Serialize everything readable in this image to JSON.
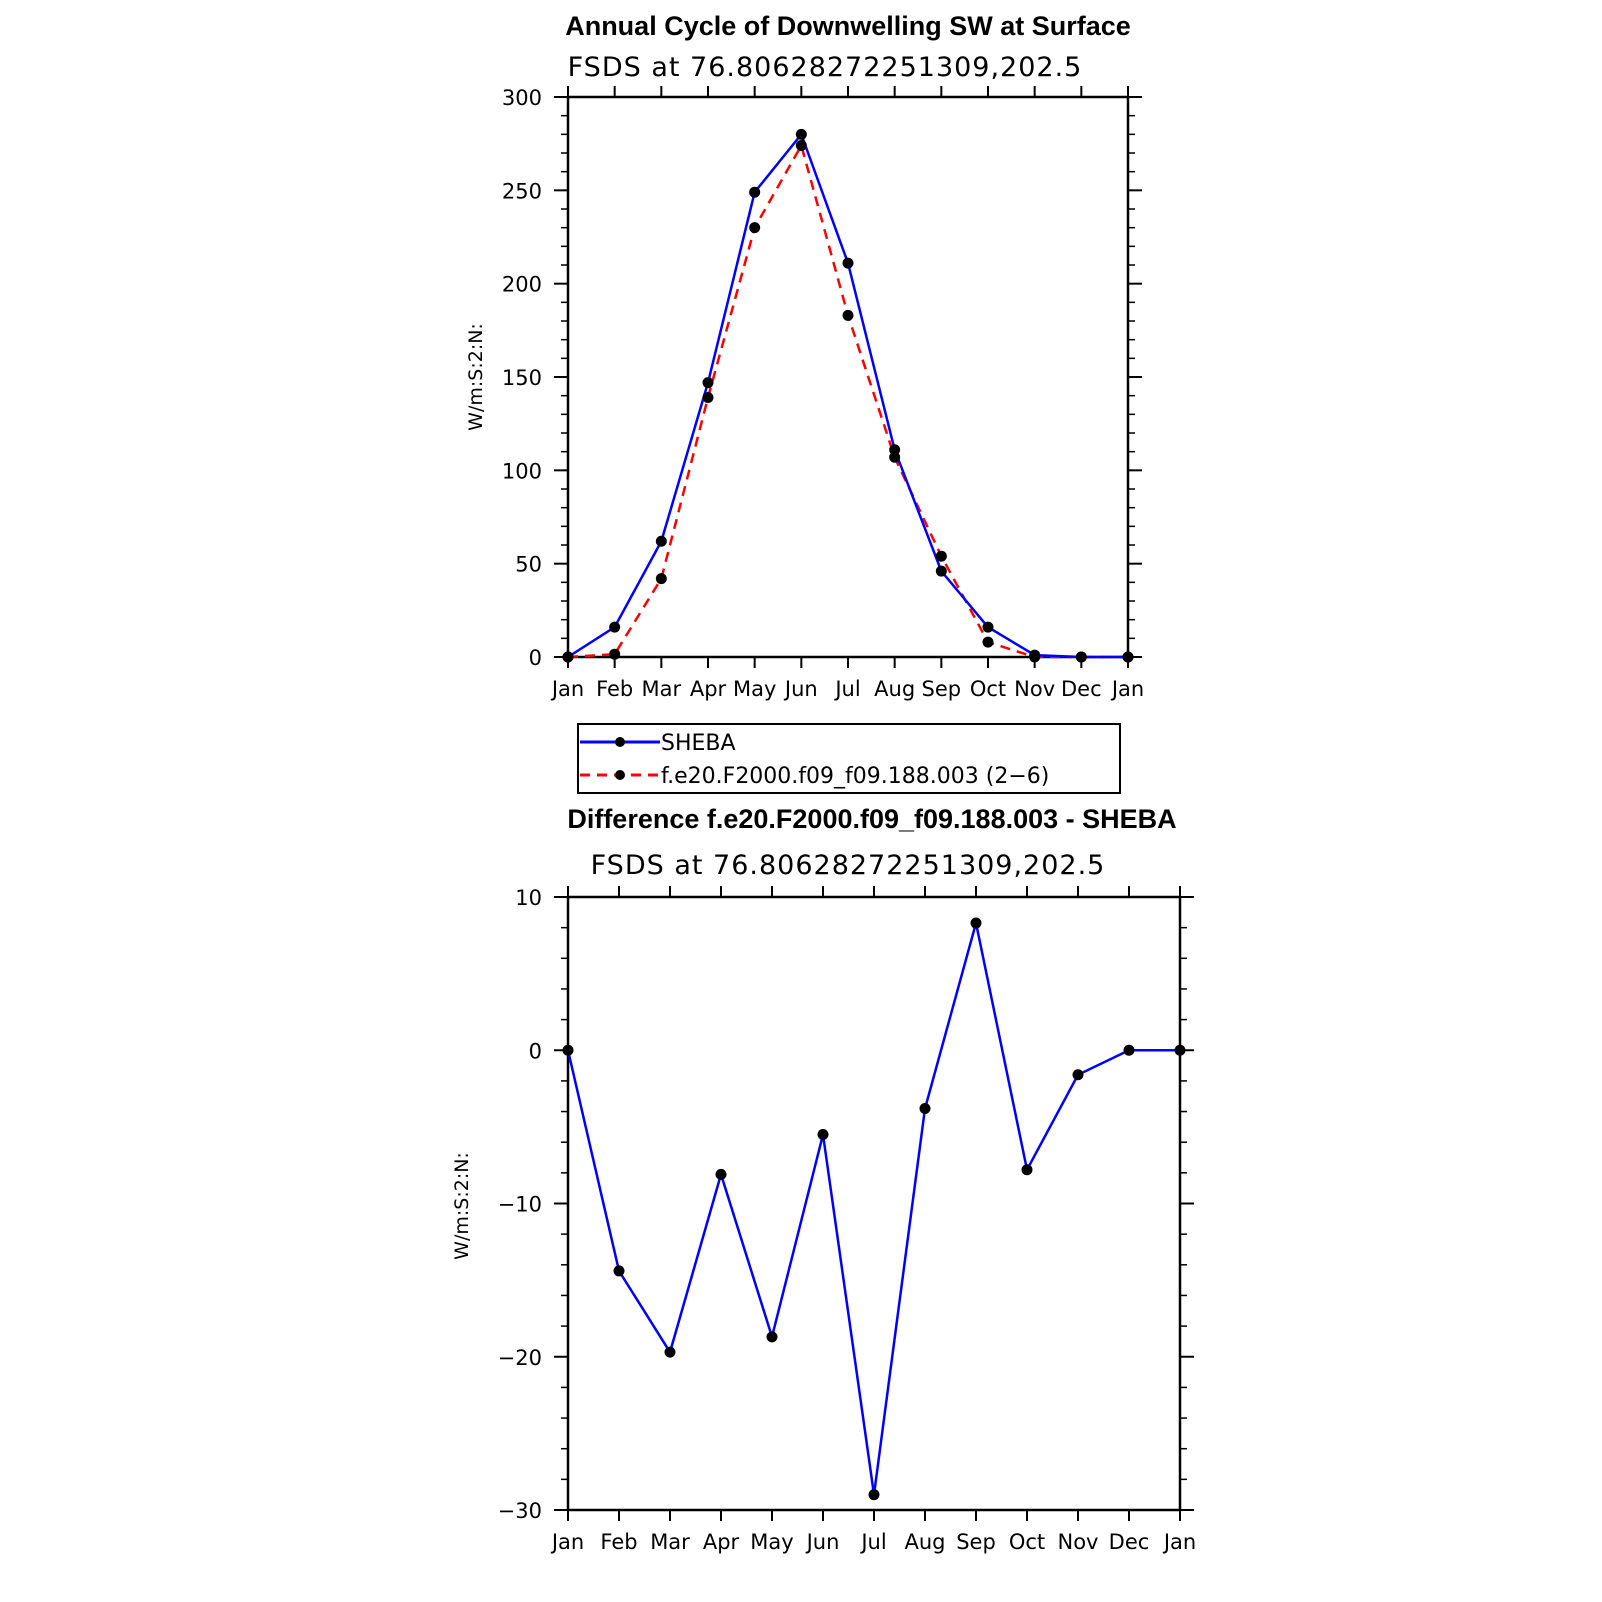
{
  "chart_data": [
    {
      "type": "line",
      "title": "Annual Cycle of Downwelling SW at Surface",
      "subtitle": "FSDS at 76.80628272251309,202.5",
      "ylabel": "W/m:S:2:N:",
      "xlabel": "",
      "ylim": [
        0,
        300
      ],
      "yticks": [
        0,
        50,
        100,
        150,
        200,
        250,
        300
      ],
      "categories": [
        "Jan",
        "Feb",
        "Mar",
        "Apr",
        "May",
        "Jun",
        "Jul",
        "Aug",
        "Sep",
        "Oct",
        "Nov",
        "Dec",
        "Jan"
      ],
      "series": [
        {
          "name": "SHEBA",
          "color": "#0000ff",
          "dash": "solid",
          "values": [
            0,
            16,
            62,
            147,
            249,
            280,
            211,
            111,
            46,
            16,
            1,
            0,
            0
          ]
        },
        {
          "name": "f.e20.F2000.f09_f09.188.003 (2−6)",
          "color": "#ff0000",
          "dash": "dashed",
          "values": [
            0,
            1.5,
            42,
            139,
            230,
            274,
            183,
            107,
            54,
            8,
            0,
            0,
            0
          ]
        }
      ],
      "legend": "below"
    },
    {
      "type": "line",
      "title": "Difference f.e20.F2000.f09_f09.188.003 - SHEBA",
      "subtitle": "FSDS at 76.80628272251309,202.5",
      "ylabel": "W/m:S:2:N:",
      "xlabel": "",
      "ylim": [
        -30,
        10
      ],
      "yticks": [
        -30,
        -20,
        -10,
        0,
        10
      ],
      "ytick_labels": [
        "−30",
        "−20",
        "−10",
        "0",
        "10"
      ],
      "categories": [
        "Jan",
        "Feb",
        "Mar",
        "Apr",
        "May",
        "Jun",
        "Jul",
        "Aug",
        "Sep",
        "Oct",
        "Nov",
        "Dec",
        "Jan"
      ],
      "series": [
        {
          "color": "#0000ff",
          "dash": "solid",
          "values": [
            0,
            -14.4,
            -19.7,
            -8.1,
            -18.7,
            -5.5,
            -29.0,
            -3.8,
            8.3,
            -7.8,
            -1.6,
            0,
            0
          ]
        }
      ]
    }
  ]
}
